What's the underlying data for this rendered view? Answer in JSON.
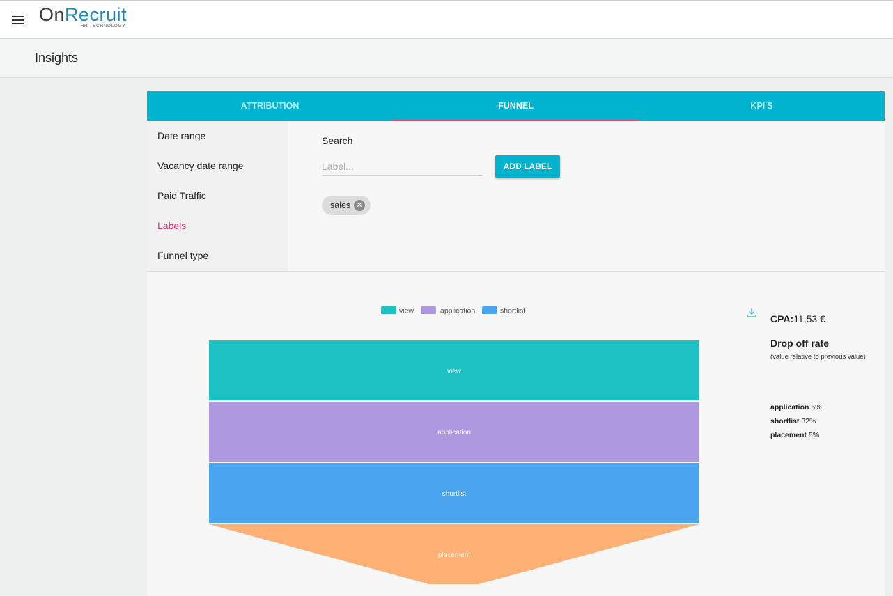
{
  "header": {
    "logo_on": "On",
    "logo_recruit": "Recruit",
    "logo_tagline": "HR TECHNOLOGY",
    "menu_icon": "hamburger-icon"
  },
  "page": {
    "title": "Insights"
  },
  "tabs": [
    {
      "label": "ATTRIBUTION",
      "active": false
    },
    {
      "label": "FUNNEL",
      "active": true
    },
    {
      "label": "KPI'S",
      "active": false
    }
  ],
  "sidebar": {
    "items": [
      {
        "label": "Date range"
      },
      {
        "label": "Vacancy date range"
      },
      {
        "label": "Paid Traffic"
      },
      {
        "label": "Labels",
        "active": true
      },
      {
        "label": "Funnel type"
      }
    ]
  },
  "filter": {
    "search_label": "Search",
    "label_placeholder": "Label...",
    "label_value": "",
    "add_label_button": "ADD LABEL",
    "chips": [
      {
        "label": "sales"
      }
    ]
  },
  "chart_data": {
    "type": "funnel",
    "legend": [
      "view",
      "application",
      "shortlist"
    ],
    "stages": [
      "view",
      "application",
      "shortlist",
      "placement"
    ],
    "colors": {
      "view": "#1dc1c4",
      "application": "#ad97de",
      "shortlist": "#4aa4ee",
      "placement": "#ffb074"
    }
  },
  "stats": {
    "cpa_label": "CPA:",
    "cpa_value": "11,53 €",
    "drop_off_title": "Drop off rate",
    "drop_off_subtitle": "(value relative to previous value)",
    "drop_off": [
      {
        "stage": "application",
        "value": "5%"
      },
      {
        "stage": "shortlist",
        "value": "32%"
      },
      {
        "stage": "placement",
        "value": "5%"
      }
    ],
    "download_icon": "download-icon"
  }
}
